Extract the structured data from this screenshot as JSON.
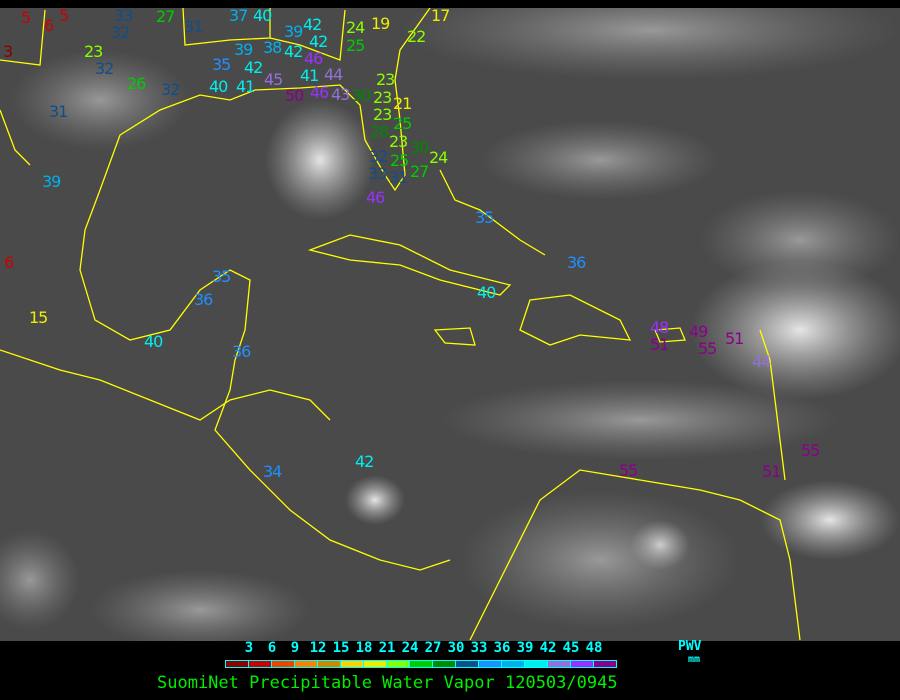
{
  "title": "SuomiNet Precipitable Water Vapor 120503/0945",
  "legend": {
    "unit_top": "PWV",
    "unit_bottom": "mm",
    "ticks": [
      "3",
      "6",
      "9",
      "12",
      "15",
      "18",
      "21",
      "24",
      "27",
      "30",
      "33",
      "36",
      "39",
      "42",
      "45",
      "48"
    ],
    "colors": [
      "#8b0000",
      "#cc0000",
      "#ee4400",
      "#ff8000",
      "#cc8800",
      "#ffd000",
      "#eeee00",
      "#88ff00",
      "#00cc00",
      "#008800",
      "#104e8b",
      "#1e90ff",
      "#00b0ee",
      "#00eeee",
      "#9370db",
      "#9b30ff",
      "#8b008b"
    ]
  },
  "map": {
    "background": "grey-scale infrared satellite",
    "coastline_color": "#ffff00",
    "station_values": [
      "5",
      "5",
      "6",
      "3",
      "33",
      "32",
      "27",
      "31",
      "37",
      "40",
      "39",
      "42",
      "42",
      "38",
      "39",
      "42",
      "46",
      "41",
      "35",
      "42",
      "40",
      "41",
      "45",
      "50",
      "46",
      "44",
      "43",
      "30",
      "23",
      "23",
      "21",
      "23",
      "25",
      "28",
      "23",
      "25",
      "30",
      "32",
      "33",
      "31",
      "27",
      "24",
      "46",
      "24",
      "25",
      "19",
      "22",
      "17",
      "23",
      "32",
      "26",
      "32",
      "31",
      "39",
      "6",
      "15",
      "35",
      "36",
      "40",
      "36",
      "35",
      "40",
      "36",
      "34",
      "42",
      "48",
      "51",
      "49",
      "55",
      "51",
      "44",
      "55",
      "51",
      "55"
    ]
  }
}
